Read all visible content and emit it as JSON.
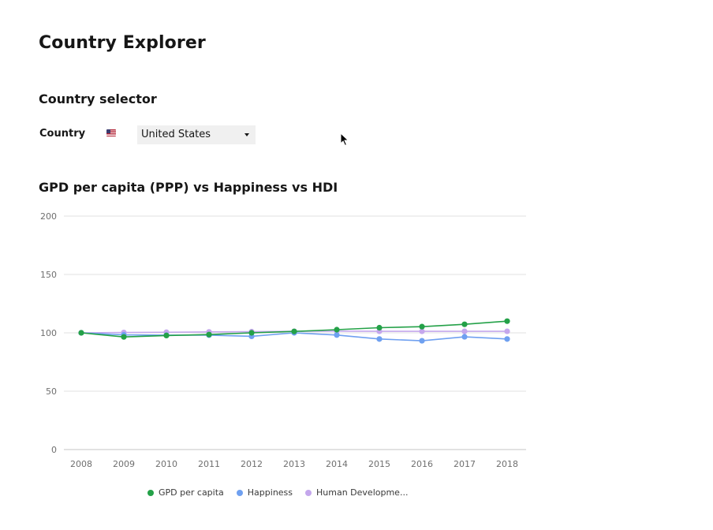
{
  "page": {
    "title": "Country Explorer"
  },
  "selector": {
    "section_title": "Country selector",
    "country_label": "Country",
    "selected_country": "United States",
    "flag_icon": "us-flag-icon"
  },
  "chart": {
    "title": "GPD per capita (PPP) vs Happiness vs HDI"
  },
  "chart_data": {
    "type": "line",
    "title": "GPD per capita (PPP) vs Happiness vs HDI",
    "x": [
      2008,
      2009,
      2010,
      2011,
      2012,
      2013,
      2014,
      2015,
      2016,
      2017,
      2018
    ],
    "ylim": [
      0,
      200
    ],
    "yticks": [
      0,
      50,
      100,
      150,
      200
    ],
    "grid": true,
    "legend_position": "bottom",
    "series": [
      {
        "name": "GPD per capita",
        "color": "#24a148",
        "values": [
          100,
          96.5,
          97.7,
          98.5,
          100,
          101.2,
          102.7,
          104.4,
          105.3,
          107.3,
          110
        ]
      },
      {
        "name": "Happiness",
        "color": "#6fa0f0",
        "values": [
          100,
          98.3,
          98,
          98,
          97,
          100,
          98.1,
          94.7,
          93.2,
          96.6,
          94.7
        ]
      },
      {
        "name": "Human Developme...",
        "color": "#c4a7ec",
        "values": [
          100,
          100.3,
          100.5,
          100.8,
          101,
          101.3,
          101.5,
          101.3,
          101.3,
          101.3,
          101.3
        ]
      }
    ]
  }
}
